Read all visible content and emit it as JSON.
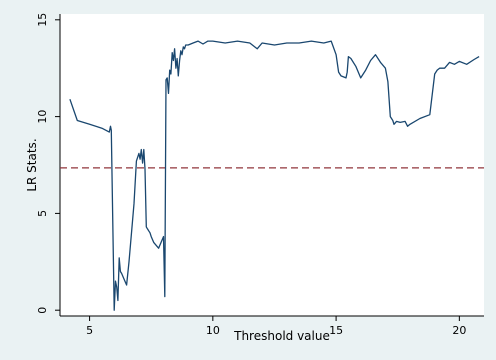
{
  "chart_data": {
    "type": "line",
    "title": "",
    "xlabel": "Threshold value",
    "ylabel": "LR Stats.",
    "xlim": [
      3.8,
      21.0
    ],
    "ylim": [
      -0.3,
      15.3
    ],
    "x_ticks": [
      5,
      10,
      15,
      20
    ],
    "y_ticks": [
      0,
      5,
      10,
      15
    ],
    "grid": false,
    "legend": "none",
    "colors": {
      "outer_background": "#eaf2f3",
      "plot_background": "#ffffff",
      "series": "#1a476f",
      "reference_line": "#90353b"
    },
    "reference_line": {
      "y": 7.35,
      "style": "dashed"
    },
    "series": [
      {
        "x": [
          4.2,
          4.5,
          5.0,
          5.5,
          5.8,
          5.85,
          5.88,
          6.0,
          6.05,
          6.1,
          6.15,
          6.2,
          6.25,
          6.3,
          6.4,
          6.5,
          6.6,
          6.7,
          6.8,
          6.9,
          7.0,
          7.05,
          7.1,
          7.15,
          7.2,
          7.25,
          7.3,
          7.35,
          7.4,
          7.45,
          7.5,
          7.6,
          7.8,
          8.0,
          8.05,
          8.1,
          8.15,
          8.2,
          8.25,
          8.3,
          8.35,
          8.4,
          8.45,
          8.5,
          8.55,
          8.6,
          8.65,
          8.7,
          8.75,
          8.8,
          8.85,
          8.9,
          9.0,
          9.2,
          9.4,
          9.6,
          9.8,
          10.0,
          10.5,
          11.0,
          11.5,
          11.8,
          12.0,
          12.5,
          13.0,
          13.5,
          14.0,
          14.5,
          14.8,
          15.0,
          15.1,
          15.2,
          15.4,
          15.45,
          15.5,
          15.6,
          15.8,
          16.0,
          16.2,
          16.4,
          16.6,
          16.8,
          17.0,
          17.1,
          17.2,
          17.3,
          17.35,
          17.45,
          17.6,
          17.8,
          17.9,
          18.0,
          18.4,
          18.8,
          19.0,
          19.1,
          19.2,
          19.4,
          19.6,
          19.8,
          20.0,
          20.3,
          20.6,
          20.8
        ],
        "y": [
          10.9,
          9.8,
          9.6,
          9.4,
          9.2,
          9.5,
          9.3,
          0.0,
          1.5,
          1.2,
          0.5,
          2.7,
          2.0,
          1.9,
          1.6,
          1.3,
          2.5,
          4.0,
          5.5,
          7.7,
          8.1,
          7.8,
          8.3,
          7.6,
          8.3,
          7.3,
          4.3,
          4.2,
          4.1,
          4.0,
          3.8,
          3.5,
          3.2,
          3.8,
          0.7,
          11.9,
          12.0,
          11.2,
          12.4,
          12.2,
          13.3,
          12.9,
          13.5,
          12.5,
          13.0,
          12.1,
          12.9,
          13.4,
          13.2,
          13.6,
          13.5,
          13.7,
          13.7,
          13.8,
          13.9,
          13.75,
          13.9,
          13.9,
          13.8,
          13.9,
          13.8,
          13.5,
          13.8,
          13.7,
          13.8,
          13.8,
          13.9,
          13.8,
          13.9,
          13.2,
          12.3,
          12.1,
          12.0,
          12.3,
          13.1,
          13.0,
          12.6,
          12.0,
          12.4,
          12.9,
          13.2,
          12.8,
          12.5,
          11.8,
          10.0,
          9.8,
          9.6,
          9.75,
          9.7,
          9.75,
          9.5,
          9.6,
          9.9,
          10.1,
          12.2,
          12.4,
          12.5,
          12.5,
          12.8,
          12.7,
          12.85,
          12.7,
          12.95,
          13.1
        ]
      }
    ]
  }
}
